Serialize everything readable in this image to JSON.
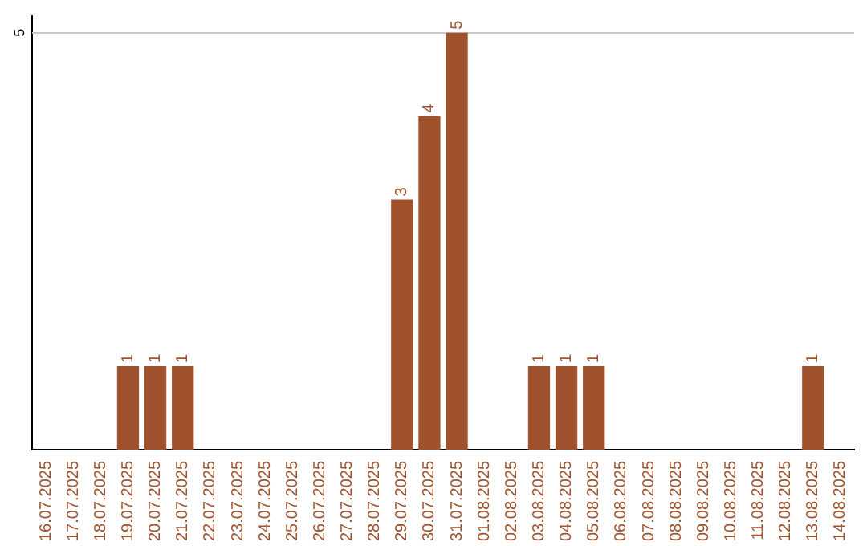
{
  "chart_data": {
    "type": "bar",
    "categories": [
      "16.07.2025",
      "17.07.2025",
      "18.07.2025",
      "19.07.2025",
      "20.07.2025",
      "21.07.2025",
      "22.07.2025",
      "23.07.2025",
      "24.07.2025",
      "25.07.2025",
      "26.07.2025",
      "27.07.2025",
      "28.07.2025",
      "29.07.2025",
      "30.07.2025",
      "31.07.2025",
      "01.08.2025",
      "02.08.2025",
      "03.08.2025",
      "04.08.2025",
      "05.08.2025",
      "06.08.2025",
      "07.08.2025",
      "08.08.2025",
      "09.08.2025",
      "10.08.2025",
      "11.08.2025",
      "12.08.2025",
      "13.08.2025",
      "14.08.2025"
    ],
    "values": [
      0,
      0,
      0,
      1,
      1,
      1,
      0,
      0,
      0,
      0,
      0,
      0,
      0,
      3,
      4,
      5,
      0,
      0,
      1,
      1,
      1,
      0,
      0,
      0,
      0,
      0,
      0,
      0,
      1,
      0
    ],
    "value_labels": [
      null,
      null,
      null,
      "1",
      "1",
      "1",
      null,
      null,
      null,
      null,
      null,
      null,
      null,
      "3",
      "4",
      "5",
      null,
      null,
      "1",
      "1",
      "1",
      null,
      null,
      null,
      null,
      null,
      null,
      null,
      "1",
      null
    ],
    "color": "#a0522d",
    "ylim": [
      0,
      5.2
    ],
    "yticks": [
      5
    ],
    "grid": "y"
  }
}
